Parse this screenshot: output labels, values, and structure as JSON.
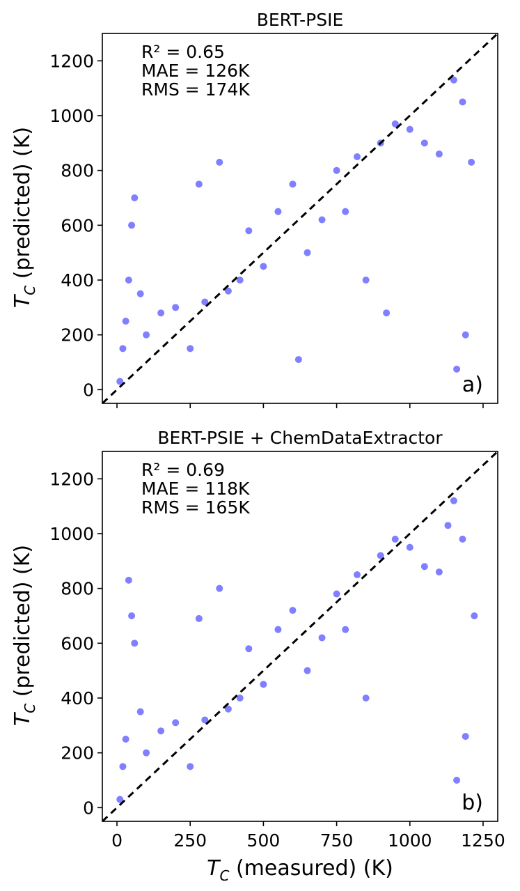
{
  "chart_data": [
    {
      "type": "scatter",
      "title": "BERT-PSIE",
      "panel_label": "a)",
      "stats": {
        "r2": "R² = 0.65",
        "mae": "MAE = 126K",
        "rms": "RMS = 174K"
      },
      "xlabel": "",
      "ylabel": "T_C (predicted) (K)",
      "xlim": [
        -50,
        1300
      ],
      "ylim": [
        -50,
        1300
      ],
      "xticks": [
        0,
        250,
        500,
        750,
        1000,
        1250
      ],
      "xtick_labels_visible": false,
      "yticks": [
        0,
        200,
        400,
        600,
        800,
        1000,
        1200
      ],
      "ytick_labels": [
        "0",
        "200",
        "400",
        "600",
        "800",
        "1000",
        "1200"
      ],
      "reference_line": "y = x (dashed)",
      "marker_color": "#0000ff",
      "grid": false,
      "points_sample": [
        [
          10,
          30
        ],
        [
          20,
          150
        ],
        [
          30,
          250
        ],
        [
          40,
          400
        ],
        [
          50,
          600
        ],
        [
          60,
          700
        ],
        [
          80,
          350
        ],
        [
          100,
          200
        ],
        [
          150,
          280
        ],
        [
          200,
          300
        ],
        [
          250,
          150
        ],
        [
          280,
          750
        ],
        [
          300,
          320
        ],
        [
          350,
          830
        ],
        [
          380,
          360
        ],
        [
          420,
          400
        ],
        [
          450,
          580
        ],
        [
          500,
          450
        ],
        [
          550,
          650
        ],
        [
          600,
          750
        ],
        [
          620,
          110
        ],
        [
          650,
          500
        ],
        [
          700,
          620
        ],
        [
          750,
          800
        ],
        [
          780,
          650
        ],
        [
          820,
          850
        ],
        [
          850,
          400
        ],
        [
          900,
          900
        ],
        [
          920,
          280
        ],
        [
          950,
          970
        ],
        [
          1000,
          950
        ],
        [
          1050,
          900
        ],
        [
          1100,
          860
        ],
        [
          1150,
          1130
        ],
        [
          1160,
          75
        ],
        [
          1180,
          1050
        ],
        [
          1190,
          200
        ],
        [
          1210,
          830
        ]
      ]
    },
    {
      "type": "scatter",
      "title": "BERT-PSIE + ChemDataExtractor",
      "panel_label": "b)",
      "stats": {
        "r2": "R² = 0.69",
        "mae": "MAE = 118K",
        "rms": "RMS = 165K"
      },
      "xlabel": "T_C (measured) (K)",
      "ylabel": "T_C (predicted) (K)",
      "xlim": [
        -50,
        1300
      ],
      "ylim": [
        -50,
        1300
      ],
      "xticks": [
        0,
        250,
        500,
        750,
        1000,
        1250
      ],
      "xtick_labels": [
        "0",
        "250",
        "500",
        "750",
        "1000",
        "1250"
      ],
      "yticks": [
        0,
        200,
        400,
        600,
        800,
        1000,
        1200
      ],
      "ytick_labels": [
        "0",
        "200",
        "400",
        "600",
        "800",
        "1000",
        "1200"
      ],
      "reference_line": "y = x (dashed)",
      "marker_color": "#0000ff",
      "grid": false,
      "points_sample": [
        [
          10,
          30
        ],
        [
          20,
          150
        ],
        [
          30,
          250
        ],
        [
          40,
          830
        ],
        [
          50,
          700
        ],
        [
          60,
          600
        ],
        [
          80,
          350
        ],
        [
          100,
          200
        ],
        [
          150,
          280
        ],
        [
          200,
          310
        ],
        [
          250,
          150
        ],
        [
          280,
          690
        ],
        [
          300,
          320
        ],
        [
          350,
          800
        ],
        [
          380,
          360
        ],
        [
          420,
          400
        ],
        [
          450,
          580
        ],
        [
          500,
          450
        ],
        [
          550,
          650
        ],
        [
          600,
          720
        ],
        [
          650,
          500
        ],
        [
          700,
          620
        ],
        [
          750,
          780
        ],
        [
          780,
          650
        ],
        [
          820,
          850
        ],
        [
          850,
          400
        ],
        [
          900,
          920
        ],
        [
          950,
          980
        ],
        [
          1000,
          950
        ],
        [
          1050,
          880
        ],
        [
          1100,
          860
        ],
        [
          1130,
          1030
        ],
        [
          1150,
          1120
        ],
        [
          1160,
          100
        ],
        [
          1180,
          980
        ],
        [
          1190,
          260
        ],
        [
          1220,
          700
        ]
      ]
    }
  ]
}
